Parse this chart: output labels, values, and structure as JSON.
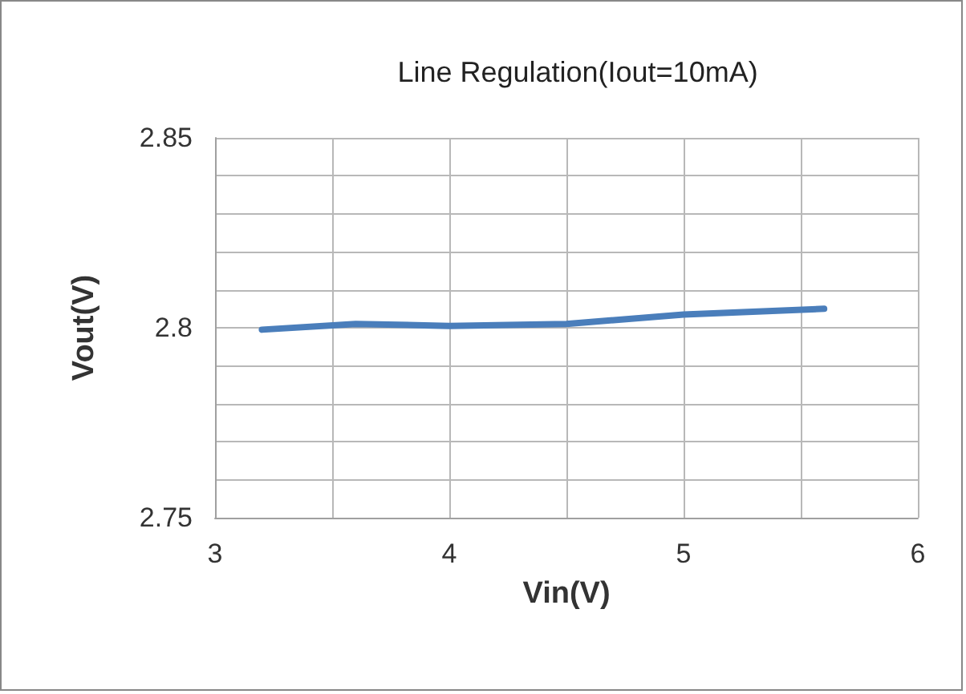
{
  "chart_data": {
    "type": "line",
    "title": "Line Regulation(Iout=10mA)",
    "xlabel": "Vin(V)",
    "ylabel": "Vout(V)",
    "x": [
      3.2,
      3.6,
      4.0,
      4.5,
      5.0,
      5.6
    ],
    "series": [
      {
        "color": "#4a7ebb",
        "values": [
          2.7995,
          2.801,
          2.8005,
          2.801,
          2.8035,
          2.805
        ]
      }
    ],
    "xlim": [
      3,
      6
    ],
    "ylim": [
      2.75,
      2.85
    ],
    "xticks": [
      3,
      {
        "value": 3.5,
        "label": null
      },
      4,
      {
        "value": 4.5,
        "label": null
      },
      5,
      {
        "value": 5.5,
        "label": null
      },
      6
    ],
    "yticks": [
      2.75,
      {
        "value": 2.76,
        "label": null
      },
      {
        "value": 2.77,
        "label": null
      },
      {
        "value": 2.78,
        "label": null
      },
      {
        "value": 2.79,
        "label": null
      },
      {
        "value": 2.8,
        "label": "2.8"
      },
      {
        "value": 2.81,
        "label": null
      },
      {
        "value": 2.82,
        "label": null
      },
      {
        "value": 2.83,
        "label": null
      },
      {
        "value": 2.84,
        "label": null
      },
      2.85
    ],
    "grid": true,
    "marker": "none",
    "line_style": "solid"
  }
}
